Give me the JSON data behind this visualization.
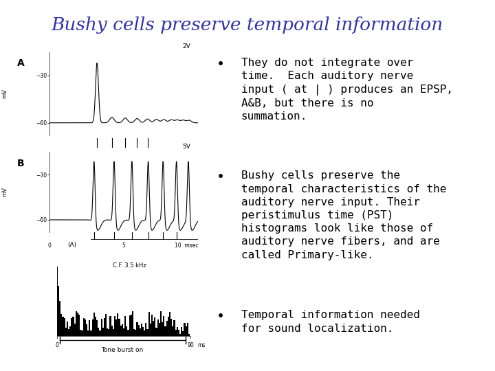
{
  "title": "Bushy cells preserve temporal information",
  "title_color": "#3333AA",
  "title_fontsize": 19,
  "background_color": "#FFFFFF",
  "bullet_points": [
    "They do not integrate over\ntime.  Each auditory nerve\ninput ( at | ) produces an EPSP,\nA&B, but there is no\nsummation.",
    "Bushy cells preserve the\ntemporal characteristics of the\nauditory nerve input. Their\nperistimulus time (PST)\nhistograms look like those of\nauditory nerve fibers, and are\ncalled Primary-like.",
    "Temporal information needed\nfor sound localization."
  ],
  "bullet_fontsize": 11.5,
  "bullet_color": "#000000"
}
